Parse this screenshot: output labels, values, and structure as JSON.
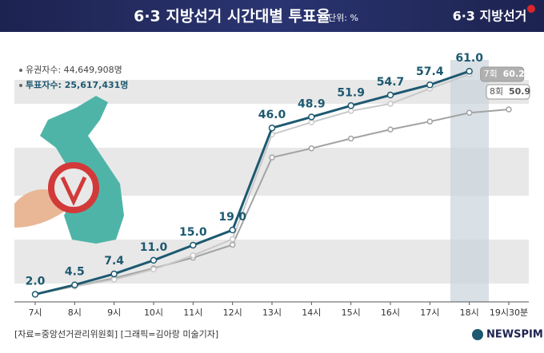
{
  "chart_data": {
    "type": "line",
    "title": "6·3 지방선거 시간대별 투표율",
    "unit": "단위: %",
    "logo": "6·3 지방선거",
    "info": [
      "유권자수: 44,649,908명",
      "투표자수: 25,617,431명"
    ],
    "source": "[자료=중앙선거관리위원회] [그래픽=김아랑 미술기자]",
    "publisher": "NEWSPIM",
    "categories": [
      "7시",
      "8시",
      "9시",
      "10시",
      "11시",
      "12시",
      "13시",
      "14시",
      "15시",
      "16시",
      "17시",
      "18시",
      "19시30분"
    ],
    "ylim": [
      0,
      64
    ],
    "series": [
      {
        "color": "#1d5970",
        "values": [
          2.0,
          4.5,
          7.4,
          11.0,
          15.0,
          19.0,
          46.0,
          48.9,
          51.9,
          54.7,
          57.4,
          61.0,
          null
        ],
        "value_labels": [
          "2.0",
          "4.5",
          "7.4",
          "11.0",
          "15.0",
          "19.0",
          "46.0",
          "48.9",
          "51.9",
          "54.7",
          "57.4",
          "61.0",
          null
        ]
      },
      {
        "name": "7회",
        "color": "#c9c9c9",
        "values": [
          2.0,
          4.1,
          5.9,
          8.6,
          12.3,
          16.6,
          44.3,
          47.5,
          50.5,
          52.4,
          56.4,
          60.2,
          null
        ]
      },
      {
        "name": "8회",
        "color": "#a3a3a3",
        "values": [
          2.0,
          4.1,
          6.3,
          8.9,
          11.7,
          15.1,
          38.2,
          40.6,
          43.2,
          45.6,
          47.7,
          50.0,
          50.9
        ]
      }
    ]
  }
}
